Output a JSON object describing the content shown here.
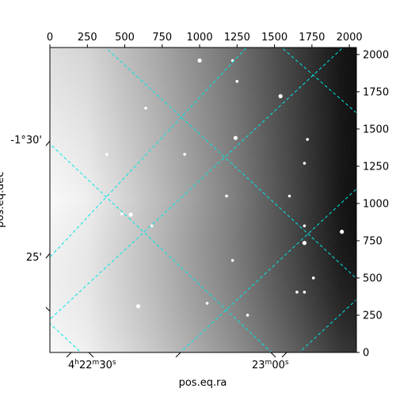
{
  "chart_data": {
    "type": "image",
    "colormap": "gray",
    "xlabel": "pos.eq.ra",
    "ylabel": "pos.eq.dec",
    "pixel_axes": {
      "x_ticks": [
        0,
        250,
        500,
        750,
        1000,
        1250,
        1500,
        1750,
        2000
      ],
      "y_ticks": [
        0,
        250,
        500,
        750,
        1000,
        1250,
        1500,
        1750,
        2000
      ],
      "xlim": [
        0,
        2047
      ],
      "ylim": [
        0,
        2047
      ]
    },
    "world_ticks": {
      "ra": [
        {
          "value": "4h22m30s",
          "h": "4",
          "m": "22",
          "s": "30"
        },
        {
          "value": "23m00s",
          "m": "23",
          "s": "00"
        }
      ],
      "dec": [
        {
          "value": "-1°30'",
          "label": "-1°30'"
        },
        {
          "value": "25'",
          "label": "25'"
        }
      ]
    },
    "grid": {
      "on": true,
      "color": "#00e5e5",
      "style": "dashed"
    },
    "stars": [
      [
        1000,
        1960
      ],
      [
        1220,
        1960
      ],
      [
        640,
        1640
      ],
      [
        380,
        1330
      ],
      [
        1240,
        1440
      ],
      [
        1700,
        1270
      ],
      [
        1600,
        1050
      ],
      [
        480,
        930
      ],
      [
        540,
        925
      ],
      [
        680,
        850
      ],
      [
        1180,
        1050
      ],
      [
        1220,
        618
      ],
      [
        1700,
        735
      ],
      [
        1760,
        500
      ],
      [
        1650,
        405
      ],
      [
        1700,
        405
      ],
      [
        590,
        310
      ],
      [
        1050,
        330
      ],
      [
        1320,
        250
      ],
      [
        1720,
        1430
      ],
      [
        1950,
        810
      ],
      [
        1250,
        1820
      ],
      [
        900,
        1330
      ],
      [
        1700,
        850
      ],
      [
        1540,
        1720
      ]
    ]
  }
}
